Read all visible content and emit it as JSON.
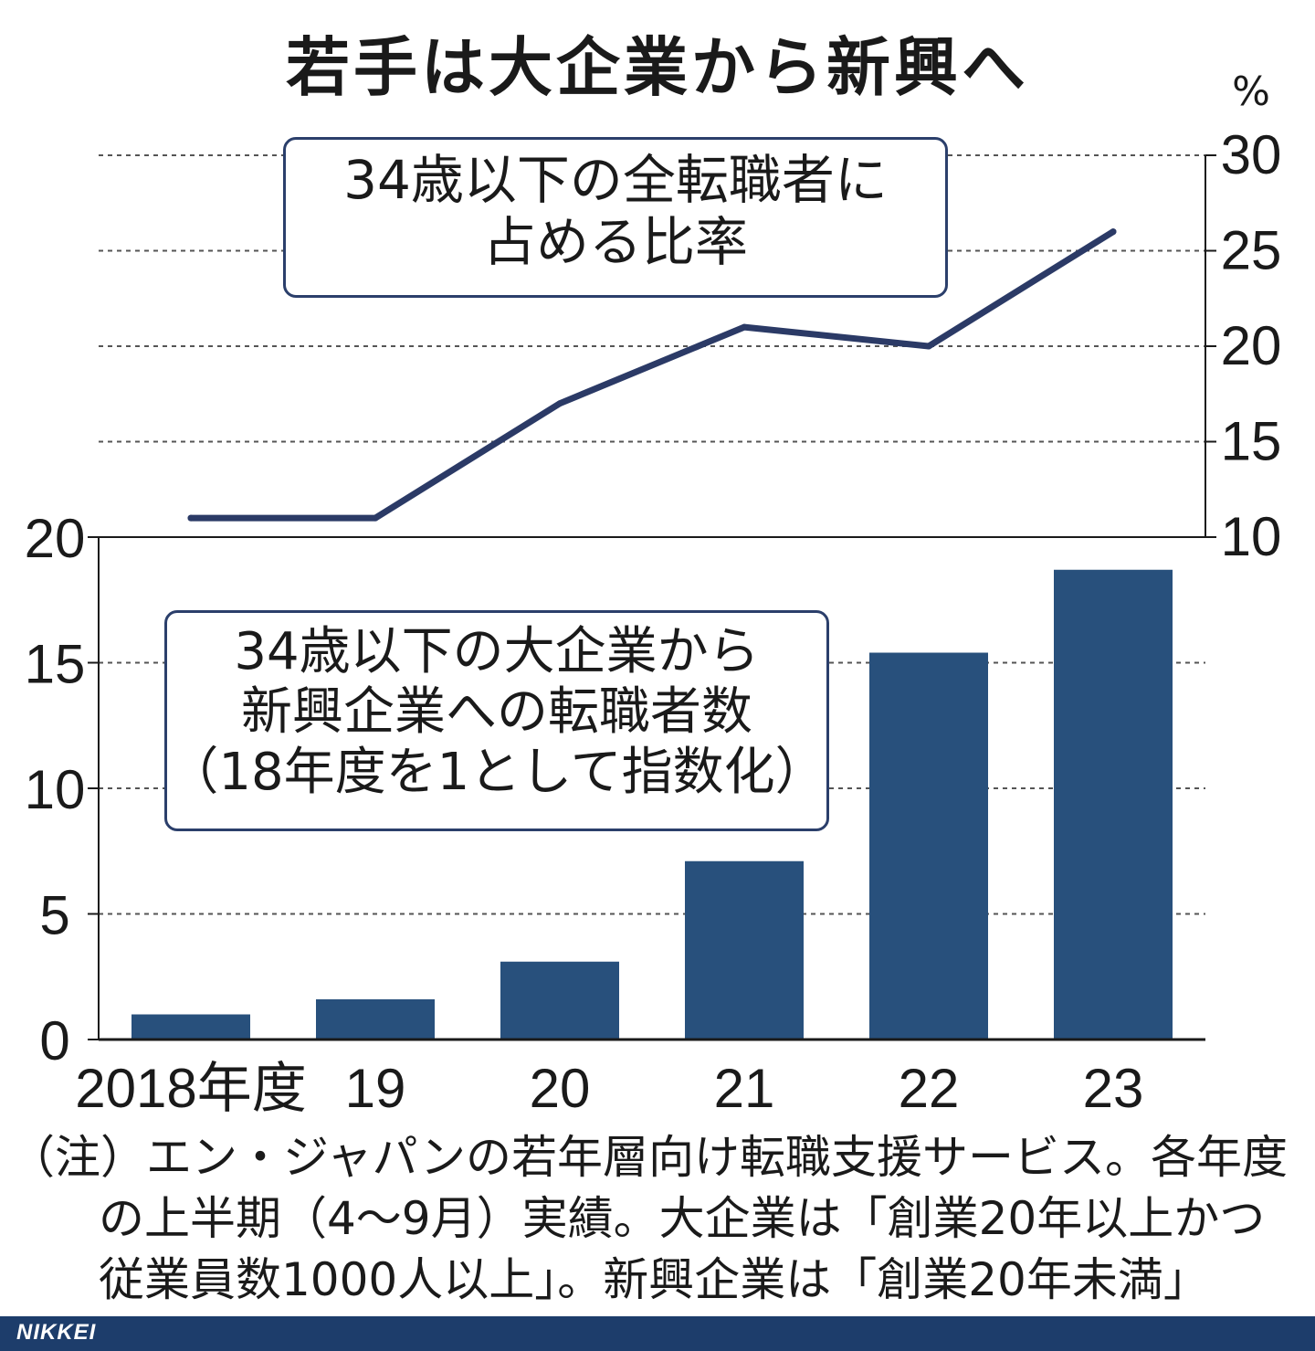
{
  "title": "若手は大企業から新興へ",
  "chart_data": {
    "type": "bar+line",
    "categories": [
      "2018年度",
      "19",
      "20",
      "21",
      "22",
      "23"
    ],
    "bar": {
      "label_lines": [
        "34歳以下の大企業から",
        "新興企業への転職者数",
        "（18年度を1として指数化）"
      ],
      "values": [
        1.0,
        1.6,
        3.1,
        7.1,
        15.4,
        18.7
      ],
      "y_axis": {
        "ticks": [
          "0",
          "5",
          "10",
          "15",
          "20"
        ],
        "ylim": [
          0,
          20
        ]
      },
      "color": "#28507c"
    },
    "line": {
      "label_lines": [
        "34歳以下の全転職者に",
        "占める比率"
      ],
      "values": [
        11,
        11,
        17,
        21,
        20,
        26
      ],
      "y_axis": {
        "unit": "%",
        "ticks": [
          "10",
          "15",
          "20",
          "25",
          "30"
        ],
        "ylim": [
          10,
          30
        ]
      },
      "color": "#2b3a66"
    },
    "grid": true
  },
  "note_lines": [
    "（注）エン・ジャパンの若年層向け転職支援サービス。各年度",
    "の上半期（4～9月）実績。大企業は「創業20年以上かつ",
    "従業員数1000人以上」。新興企業は「創業20年未満」"
  ],
  "brand": "NIKKEI"
}
